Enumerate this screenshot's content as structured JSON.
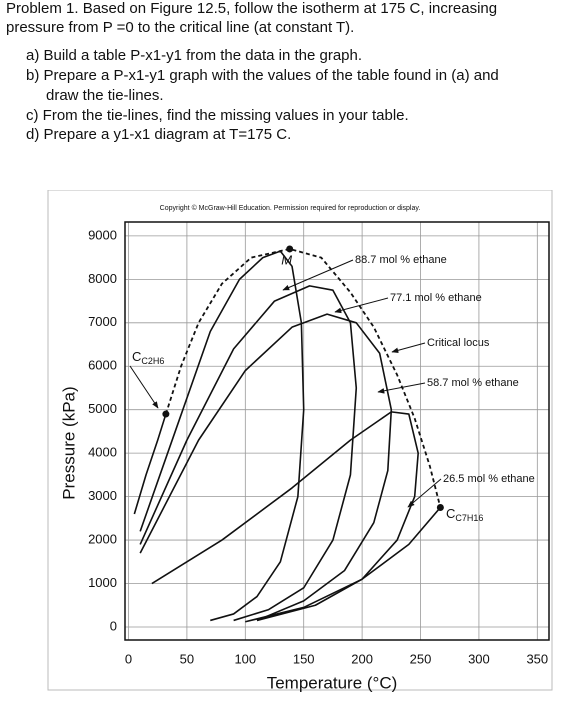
{
  "problem": {
    "intro": [
      "Problem 1. Based on Figure 12.5, follow the isotherm at 175 C, increasing",
      "pressure from P =0 to the critical line (at constant T)."
    ],
    "tasks": [
      "a) Build a table P-x1-y1 from the data in the graph.",
      "b) Prepare a P-x1-y1 graph with the values of the table found in (a) and",
      "draw the tie-lines.",
      "c) From the tie-lines, find the missing values in your table.",
      "d) Prepare a y1-x1 diagram at T=175 C."
    ]
  },
  "chart_data": {
    "type": "line",
    "caption": "Copyright © McGraw-Hill Education. Permission required for reproduction or display.",
    "x_label": "Temperature (°C)",
    "y_label": "Pressure (kPa)",
    "xlim": [
      -3,
      360
    ],
    "ylim": [
      -300,
      9320
    ],
    "xticks": [
      0,
      50,
      100,
      150,
      200,
      250,
      300,
      350
    ],
    "yticks": [
      0,
      1000,
      2000,
      3000,
      4000,
      5000,
      6000,
      7000,
      8000,
      9000
    ],
    "grid": true,
    "series": [
      {
        "name": "Critical locus",
        "color": "#111",
        "dashed": true,
        "x": [
          32,
          45,
          60,
          80,
          105,
          138,
          165,
          190,
          210,
          230,
          245,
          258,
          267
        ],
        "values": [
          4900,
          6000,
          7000,
          7900,
          8500,
          8700,
          8500,
          7700,
          6900,
          5800,
          4800,
          3700,
          2750
        ]
      },
      {
        "name": "88.7 mol % ethane",
        "color": "#111",
        "dashed": false,
        "x": [
          10,
          40,
          70,
          95,
          115,
          130,
          140,
          148,
          150,
          145,
          130,
          110,
          90,
          70
        ],
        "values": [
          2200,
          4500,
          6800,
          8000,
          8500,
          8650,
          8300,
          7000,
          5000,
          3000,
          1500,
          700,
          300,
          150
        ]
      },
      {
        "name": "77.1 mol % ethane",
        "color": "#111",
        "dashed": false,
        "x": [
          10,
          50,
          90,
          125,
          155,
          175,
          190,
          195,
          190,
          175,
          150,
          120,
          90
        ],
        "values": [
          1900,
          4300,
          6400,
          7500,
          7850,
          7750,
          7000,
          5500,
          3500,
          2000,
          900,
          400,
          150
        ]
      },
      {
        "name": "58.7 mol % ethane",
        "color": "#111",
        "dashed": false,
        "x": [
          10,
          60,
          100,
          140,
          170,
          195,
          215,
          225,
          222,
          210,
          185,
          150,
          110
        ],
        "values": [
          1700,
          4300,
          5900,
          6900,
          7200,
          7000,
          6300,
          5000,
          3600,
          2400,
          1300,
          600,
          150
        ]
      },
      {
        "name": "26.5 mol % ethane",
        "color": "#111",
        "dashed": false,
        "x": [
          20,
          80,
          140,
          190,
          225,
          240,
          248,
          245,
          230,
          200,
          160,
          110
        ],
        "values": [
          1000,
          2000,
          3200,
          4300,
          4950,
          4900,
          4000,
          3000,
          2000,
          1100,
          500,
          150
        ]
      },
      {
        "name": "C",
        "subscript": "C2H6",
        "color": "#111",
        "dashed": false,
        "x": [
          5,
          15,
          25,
          32
        ],
        "values": [
          2600,
          3500,
          4300,
          4900
        ]
      },
      {
        "name": "C",
        "subscript": "C7H16",
        "color": "#111",
        "dashed": false,
        "x": [
          100,
          150,
          200,
          240,
          267
        ],
        "values": [
          120,
          450,
          1100,
          1900,
          2750
        ]
      }
    ],
    "points": [
      {
        "label": "M",
        "x": 138,
        "y": 8700
      },
      {
        "x": 32,
        "y": 4900
      },
      {
        "x": 267,
        "y": 2750
      }
    ]
  }
}
